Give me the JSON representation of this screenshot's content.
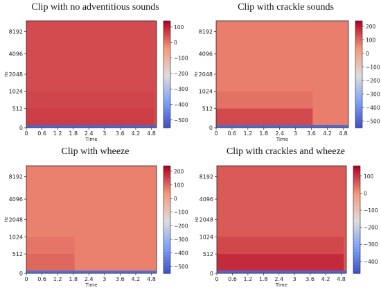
{
  "chart_data": [
    {
      "type": "heatmap",
      "title": "Clip with no adventitious sounds",
      "xlabel": "Time",
      "ylabel": "Hz",
      "x_ticks": [
        "0",
        "0.6",
        "1.2",
        "1.8",
        "2.4",
        "3",
        "3.6",
        "4.2",
        "4.8"
      ],
      "y_ticks": [
        "0",
        "512",
        "1024",
        "2048",
        "4096",
        "8192"
      ],
      "colorbar_ticks": [
        "100",
        "0",
        "−100",
        "−200",
        "−300",
        "−400",
        "−500"
      ],
      "colorbar_range": [
        -550,
        140
      ],
      "colormap": "coolwarm",
      "x_range": [
        0,
        5.0
      ],
      "signal_end_s": 4.9,
      "band_rows": [
        {
          "hz_from": 0,
          "hz_to": 64,
          "level_db": -500
        },
        {
          "hz_from": 64,
          "hz_to": 512,
          "level_db": 75
        },
        {
          "hz_from": 512,
          "hz_to": 1024,
          "level_db": 65
        },
        {
          "hz_from": 1024,
          "hz_to": 8192,
          "level_db": 58
        }
      ]
    },
    {
      "type": "heatmap",
      "title": "Clip with crackle sounds",
      "xlabel": "Time",
      "ylabel": "Hz",
      "x_ticks": [
        "0",
        "0.6",
        "1.2",
        "1.8",
        "2.4",
        "3",
        "3.6",
        "4.2",
        "4.8"
      ],
      "y_ticks": [
        "0",
        "512",
        "1024",
        "2048",
        "4096",
        "8192"
      ],
      "colorbar_ticks": [
        "200",
        "100",
        "0",
        "−100",
        "−200",
        "−300",
        "−400",
        "−500"
      ],
      "colorbar_range": [
        -550,
        240
      ],
      "colormap": "coolwarm",
      "x_range": [
        0,
        5.0
      ],
      "signal_end_s": 3.65,
      "band_rows": [
        {
          "hz_from": 0,
          "hz_to": 64,
          "level_db": -480
        },
        {
          "hz_from": 64,
          "hz_to": 512,
          "level_db": 150
        },
        {
          "hz_from": 512,
          "hz_to": 1024,
          "level_db": 95
        },
        {
          "hz_from": 1024,
          "hz_to": 8192,
          "level_db": 80
        }
      ]
    },
    {
      "type": "heatmap",
      "title": "Clip with wheeze",
      "xlabel": "Time",
      "ylabel": "Hz",
      "x_ticks": [
        "0",
        "0.6",
        "1.2",
        "1.8",
        "2.4",
        "3",
        "3.6",
        "4.2",
        "4.8"
      ],
      "y_ticks": [
        "0",
        "512",
        "1024",
        "2048",
        "4096",
        "8192"
      ],
      "colorbar_ticks": [
        "200",
        "100",
        "0",
        "−100",
        "−200",
        "−300",
        "−400",
        "−500"
      ],
      "colorbar_range": [
        -550,
        240
      ],
      "colormap": "coolwarm",
      "x_range": [
        0,
        5.0
      ],
      "signal_end_s": 1.85,
      "band_rows": [
        {
          "hz_from": 0,
          "hz_to": 64,
          "level_db": -470
        },
        {
          "hz_from": 64,
          "hz_to": 512,
          "level_db": 110
        },
        {
          "hz_from": 512,
          "hz_to": 1024,
          "level_db": 90
        },
        {
          "hz_from": 1024,
          "hz_to": 8192,
          "level_db": 75
        }
      ]
    },
    {
      "type": "heatmap",
      "title": "Clip with crackles and wheeze",
      "xlabel": "Time",
      "ylabel": "Hz",
      "x_ticks": [
        "0",
        "0.6",
        "1.2",
        "1.8",
        "2.4",
        "3",
        "3.6",
        "4.2",
        "4.8"
      ],
      "y_ticks": [
        "0",
        "512",
        "1024",
        "2048",
        "4096",
        "8192"
      ],
      "colorbar_ticks": [
        "100",
        "0",
        "−100",
        "−200",
        "−300",
        "−400"
      ],
      "colorbar_range": [
        -470,
        160
      ],
      "colormap": "coolwarm",
      "x_range": [
        0,
        5.0
      ],
      "signal_end_s": 4.9,
      "band_rows": [
        {
          "hz_from": 0,
          "hz_to": 64,
          "level_db": -420
        },
        {
          "hz_from": 64,
          "hz_to": 512,
          "level_db": 120
        },
        {
          "hz_from": 512,
          "hz_to": 1024,
          "level_db": 90
        },
        {
          "hz_from": 1024,
          "hz_to": 8192,
          "level_db": 70
        }
      ]
    }
  ]
}
